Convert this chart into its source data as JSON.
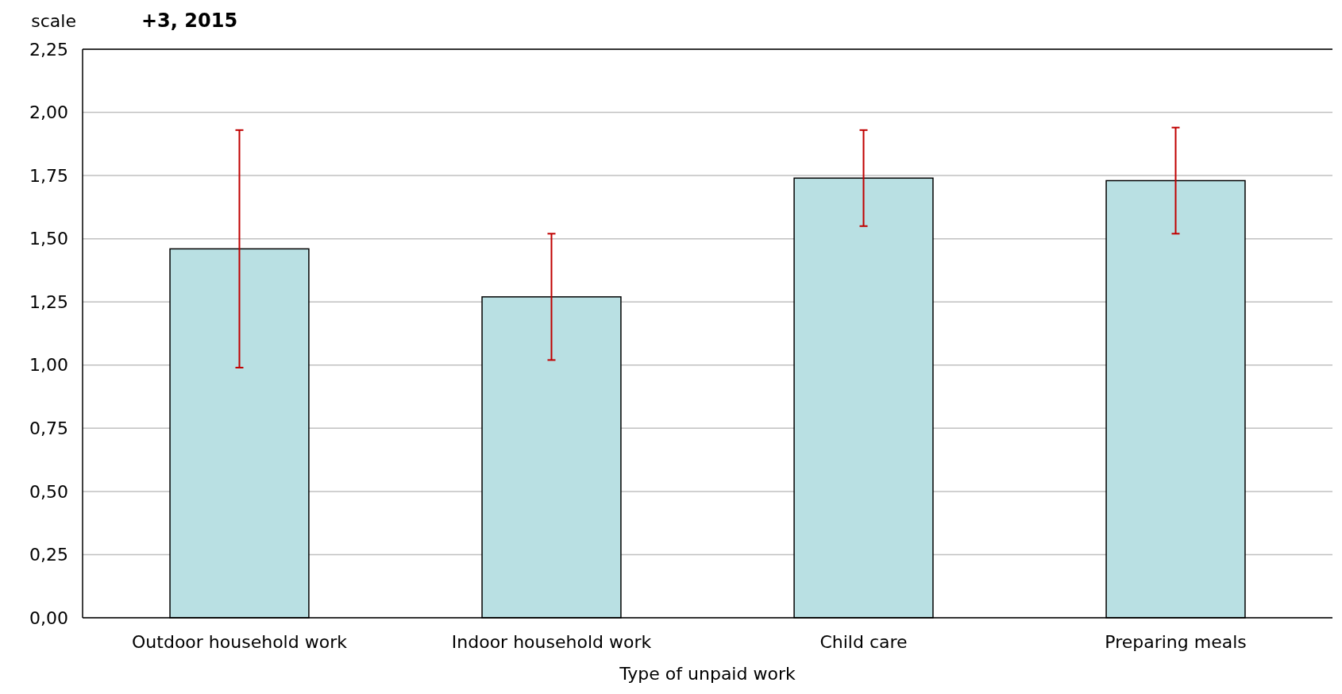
{
  "chart_data": {
    "type": "bar",
    "title": "+3, 2015",
    "ylabel": "scale",
    "xlabel": "Type of unpaid work",
    "categories": [
      "Outdoor household work",
      "Indoor household work",
      "Child care",
      "Preparing meals"
    ],
    "values": [
      1.46,
      1.27,
      1.74,
      1.73
    ],
    "errors": [
      0.47,
      0.25,
      0.19,
      0.21
    ],
    "color": "#b9e0e3",
    "ylim": [
      0,
      2.25
    ],
    "yticks": [
      {
        "value": 0,
        "label": "0,00"
      },
      {
        "value": 0.25,
        "label": "0,25"
      },
      {
        "value": 0.5,
        "label": "0,50"
      },
      {
        "value": 0.75,
        "label": "0,75"
      },
      {
        "value": 1,
        "label": "1,00"
      },
      {
        "value": 1.25,
        "label": "1,25"
      },
      {
        "value": 1.5,
        "label": "1,50"
      },
      {
        "value": 1.75,
        "label": "1,75"
      },
      {
        "value": 2,
        "label": "2,00"
      },
      {
        "value": 2.25,
        "label": "2,25"
      }
    ],
    "grid": "y"
  }
}
